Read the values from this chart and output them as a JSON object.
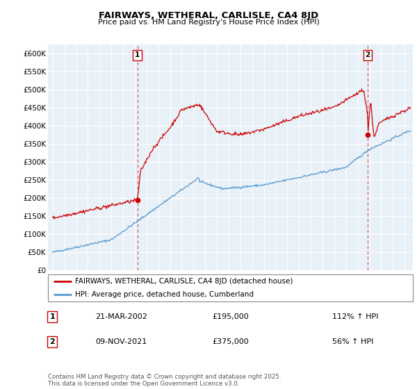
{
  "title": "FAIRWAYS, WETHERAL, CARLISLE, CA4 8JD",
  "subtitle": "Price paid vs. HM Land Registry's House Price Index (HPI)",
  "ylim": [
    0,
    625000
  ],
  "yticks": [
    0,
    50000,
    100000,
    150000,
    200000,
    250000,
    300000,
    350000,
    400000,
    450000,
    500000,
    550000,
    600000
  ],
  "ytick_labels": [
    "£0",
    "£50K",
    "£100K",
    "£150K",
    "£200K",
    "£250K",
    "£300K",
    "£350K",
    "£400K",
    "£450K",
    "£500K",
    "£550K",
    "£600K"
  ],
  "marker1_date": "21-MAR-2002",
  "marker1_price": 195000,
  "marker1_pct": "112%",
  "marker2_date": "09-NOV-2021",
  "marker2_price": 375000,
  "marker2_pct": "56%",
  "legend_label1": "FAIRWAYS, WETHERAL, CARLISLE, CA4 8JD (detached house)",
  "legend_label2": "HPI: Average price, detached house, Cumberland",
  "line1_color": "#cc0000",
  "line2_color": "#5599cc",
  "grid_color": "#cccccc",
  "chart_bg": "#e8f0f8",
  "marker1_x": 2002.22,
  "marker2_x": 2021.86,
  "footer": "Contains HM Land Registry data © Crown copyright and database right 2025.\nThis data is licensed under the Open Government Licence v3.0."
}
